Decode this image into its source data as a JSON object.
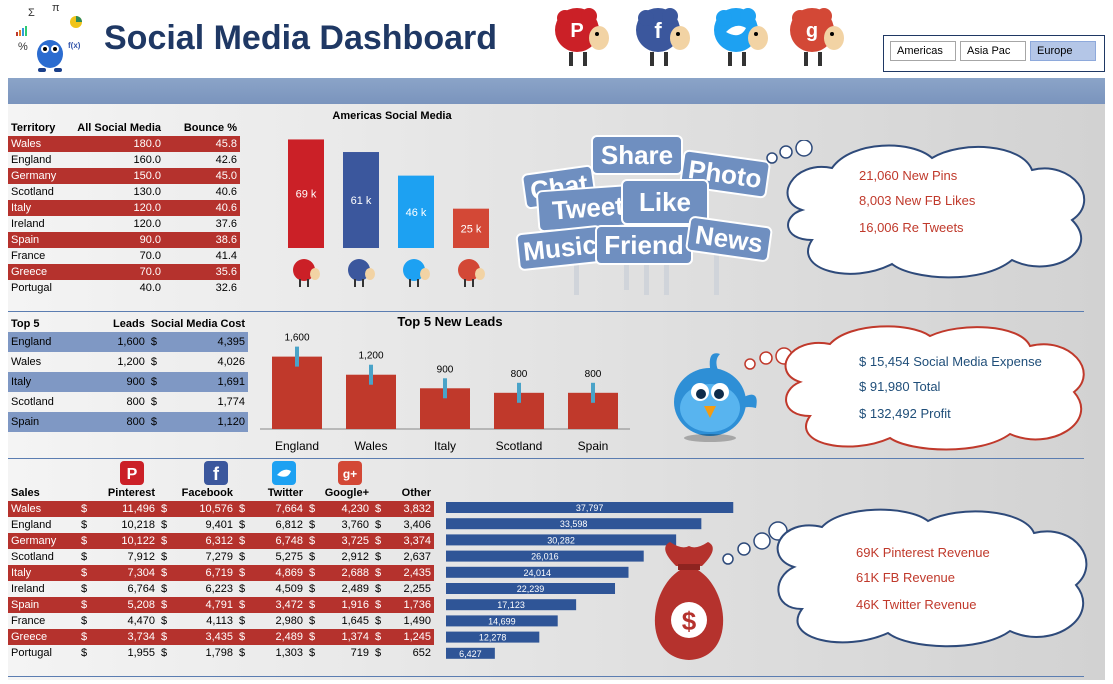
{
  "title": "Social Media Dashboard",
  "tabs": [
    {
      "label": "Americas",
      "selected": false
    },
    {
      "label": "Asia Pac",
      "selected": false
    },
    {
      "label": "Europe",
      "selected": true
    }
  ],
  "logo_symbols": [
    "Σ",
    "π",
    "%",
    "f(x)"
  ],
  "social_icons": [
    "pinterest-icon",
    "facebook-icon",
    "twitter-icon",
    "googleplus-icon"
  ],
  "colors": {
    "red": "#b5322d",
    "blue": "#7f98c4",
    "navy": "#1f3864",
    "pinterest": "#cb2027",
    "facebook": "#3b579d",
    "twitter": "#1da1f2",
    "google": "#d34836",
    "bar_blue": "#2f5597"
  },
  "territory": {
    "headers": [
      "Territory",
      "All Social Media",
      "Bounce %"
    ],
    "rows": [
      [
        "Wales",
        "180.0",
        "45.8"
      ],
      [
        "England",
        "160.0",
        "42.6"
      ],
      [
        "Germany",
        "150.0",
        "45.0"
      ],
      [
        "Scotland",
        "130.0",
        "40.6"
      ],
      [
        "Italy",
        "120.0",
        "40.6"
      ],
      [
        "Ireland",
        "120.0",
        "37.6"
      ],
      [
        "Spain",
        "90.0",
        "38.6"
      ],
      [
        "France",
        "70.0",
        "41.4"
      ],
      [
        "Greece",
        "70.0",
        "35.6"
      ],
      [
        "Portugal",
        "40.0",
        "32.6"
      ]
    ]
  },
  "top5": {
    "headers": [
      "Top 5",
      "Leads",
      "Social Media Cost"
    ],
    "currency": "$",
    "rows": [
      [
        "England",
        "1,600",
        "4,395"
      ],
      [
        "Wales",
        "1,200",
        "4,026"
      ],
      [
        "Italy",
        "900",
        "1,691"
      ],
      [
        "Scotland",
        "800",
        "1,774"
      ],
      [
        "Spain",
        "800",
        "1,120"
      ]
    ]
  },
  "sales": {
    "headers": [
      "Sales",
      "Pinterest",
      "Facebook",
      "Twitter",
      "Google+",
      "Other"
    ],
    "currency": "$",
    "rows": [
      [
        "Wales",
        "11,496",
        "10,576",
        "7,664",
        "4,230",
        "3,832"
      ],
      [
        "England",
        "10,218",
        "9,401",
        "6,812",
        "3,760",
        "3,406"
      ],
      [
        "Germany",
        "10,122",
        "6,312",
        "6,748",
        "3,725",
        "3,374"
      ],
      [
        "Scotland",
        "7,912",
        "7,279",
        "5,275",
        "2,912",
        "2,637"
      ],
      [
        "Italy",
        "7,304",
        "6,719",
        "4,869",
        "2,688",
        "2,435"
      ],
      [
        "Ireland",
        "6,764",
        "6,223",
        "4,509",
        "2,489",
        "2,255"
      ],
      [
        "Spain",
        "5,208",
        "4,791",
        "3,472",
        "1,916",
        "1,736"
      ],
      [
        "France",
        "4,470",
        "4,113",
        "2,980",
        "1,645",
        "1,490"
      ],
      [
        "Greece",
        "3,734",
        "3,435",
        "2,489",
        "1,374",
        "1,245"
      ],
      [
        "Portugal",
        "1,955",
        "1,798",
        "1,303",
        "719",
        "652"
      ]
    ]
  },
  "chart_data": [
    {
      "type": "bar",
      "title": "Americas Social Media",
      "categories": [
        "Pinterest",
        "Facebook",
        "Twitter",
        "Google+"
      ],
      "values": [
        69,
        61,
        46,
        25
      ],
      "labels": [
        "69 k",
        "61 k",
        "46 k",
        "25 k"
      ],
      "colors": [
        "#cb2027",
        "#3b579d",
        "#1da1f2",
        "#d34836"
      ],
      "ylim": [
        0,
        75
      ]
    },
    {
      "type": "bar",
      "title": "Top 5 New Leads",
      "categories": [
        "England",
        "Wales",
        "Italy",
        "Scotland",
        "Spain"
      ],
      "values": [
        1600,
        1200,
        900,
        800,
        800
      ],
      "labels": [
        "1,600",
        "1,200",
        "900",
        "800",
        "800"
      ],
      "ylim": [
        0,
        2100
      ]
    },
    {
      "type": "bar",
      "orientation": "horizontal",
      "categories": [
        "Wales",
        "England",
        "Germany",
        "Scotland",
        "Italy",
        "Ireland",
        "Spain",
        "France",
        "Greece",
        "Portugal"
      ],
      "values": [
        37797,
        33598,
        30282,
        26016,
        24014,
        22239,
        17123,
        14699,
        12278,
        6427
      ],
      "labels": [
        "37,797",
        "33,598",
        "30,282",
        "26,016",
        "24,014",
        "22,239",
        "17,123",
        "14,699",
        "12,278",
        "6,427"
      ],
      "xlim": [
        0,
        40000
      ]
    }
  ],
  "share_words": [
    "Chat",
    "Share",
    "Photo",
    "Tweet",
    "Like",
    "Music",
    "Friend",
    "News"
  ],
  "clouds": [
    {
      "lines": [
        "21,060 New Pins",
        "8,003 New FB Likes",
        "16,006 Re Tweets"
      ],
      "color": "red"
    },
    {
      "lines": [
        "$ 15,454 Social Media Expense",
        "$ 91,980 Total",
        "$ 132,492 Profit"
      ],
      "color": "blue"
    },
    {
      "lines": [
        "69K Pinterest Revenue",
        "61K FB Revenue",
        "46K Twitter Revenue"
      ],
      "color": "red"
    }
  ]
}
